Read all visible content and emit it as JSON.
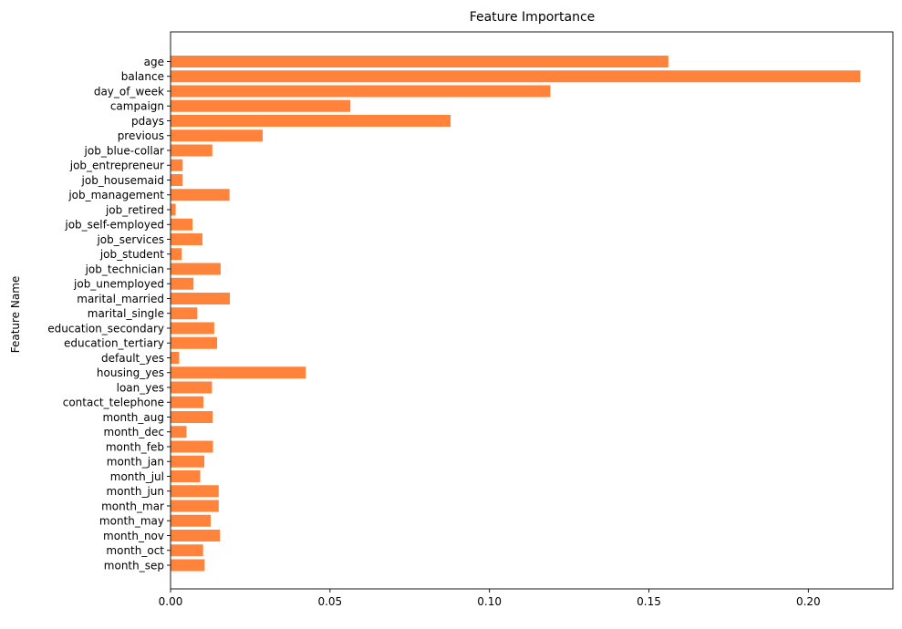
{
  "chart_data": {
    "type": "bar",
    "orientation": "horizontal",
    "title": "Feature Importance",
    "xlabel": "",
    "ylabel": "Feature Name",
    "xlim": [
      0,
      0.2265
    ],
    "xticks": [
      0.0,
      0.05,
      0.1,
      0.15,
      0.2
    ],
    "xtick_labels": [
      "0.00",
      "0.05",
      "0.10",
      "0.15",
      "0.20"
    ],
    "bar_color": "#ff833a",
    "grid": false,
    "categories": [
      "age",
      "balance",
      "day_of_week",
      "campaign",
      "pdays",
      "previous",
      "job_blue-collar",
      "job_entrepreneur",
      "job_housemaid",
      "job_management",
      "job_retired",
      "job_self-employed",
      "job_services",
      "job_student",
      "job_technician",
      "job_unemployed",
      "marital_married",
      "marital_single",
      "education_secondary",
      "education_tertiary",
      "default_yes",
      "housing_yes",
      "loan_yes",
      "contact_telephone",
      "month_aug",
      "month_dec",
      "month_feb",
      "month_jan",
      "month_jul",
      "month_jun",
      "month_mar",
      "month_may",
      "month_nov",
      "month_oct",
      "month_sep"
    ],
    "values": [
      0.1561,
      0.2163,
      0.1191,
      0.0564,
      0.0878,
      0.0289,
      0.0131,
      0.0038,
      0.0038,
      0.0185,
      0.0016,
      0.0069,
      0.01,
      0.0035,
      0.0157,
      0.0072,
      0.0186,
      0.0084,
      0.0137,
      0.0146,
      0.0027,
      0.0424,
      0.013,
      0.0103,
      0.0132,
      0.005,
      0.0133,
      0.0106,
      0.0093,
      0.0151,
      0.0151,
      0.0126,
      0.0155,
      0.0102,
      0.0107
    ]
  }
}
